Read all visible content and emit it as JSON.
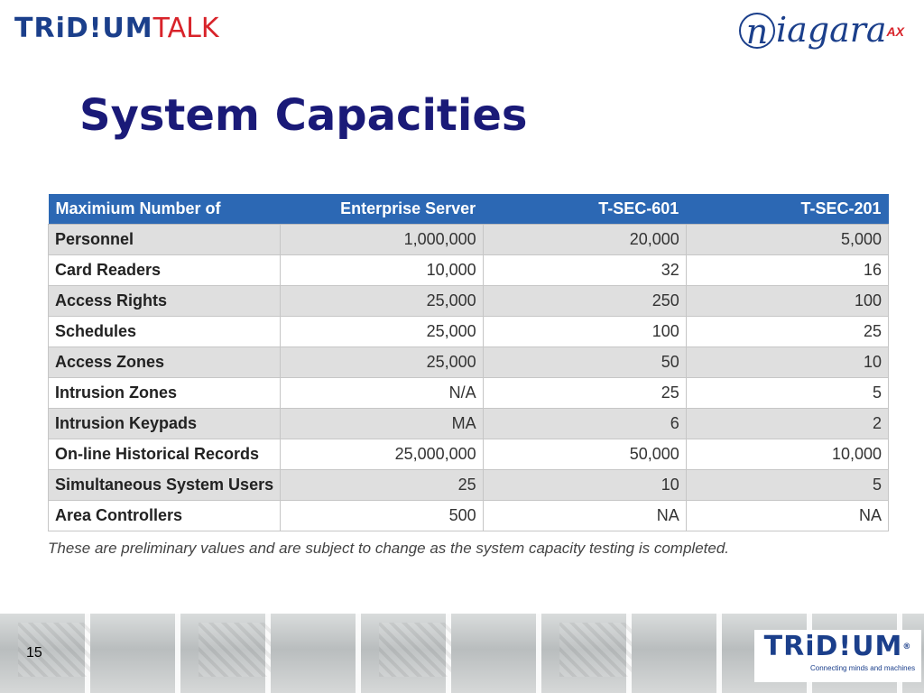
{
  "header": {
    "brand_tri": "TRiD!UM",
    "brand_talk": "TALK",
    "niagara_n": "n",
    "niagara_rest": "iagara",
    "niagara_ax": "AX"
  },
  "slide": {
    "title": "System Capacities",
    "note": "These are preliminary values and are subject to change as the system capacity testing is completed.",
    "page_number": "15"
  },
  "table": {
    "headers": [
      "Maximium Number of",
      "Enterprise Server",
      "T-SEC-601",
      "T-SEC-201"
    ],
    "rows": [
      [
        "Personnel",
        "1,000,000",
        "20,000",
        "5,000"
      ],
      [
        "Card Readers",
        "10,000",
        "32",
        "16"
      ],
      [
        "Access Rights",
        "25,000",
        "250",
        "100"
      ],
      [
        "Schedules",
        "25,000",
        "100",
        "25"
      ],
      [
        "Access Zones",
        "25,000",
        "50",
        "10"
      ],
      [
        "Intrusion Zones",
        "N/A",
        "25",
        "5"
      ],
      [
        "Intrusion Keypads",
        "MA",
        "6",
        "2"
      ],
      [
        "On-line Historical Records",
        "25,000,000",
        "50,000",
        "10,000"
      ],
      [
        "Simultaneous System Users",
        "25",
        "10",
        "5"
      ],
      [
        "Area Controllers",
        "500",
        "NA",
        "NA"
      ]
    ]
  },
  "footer": {
    "brand": "TRiD!UM",
    "registered": "®",
    "tagline": "Connecting minds and machines"
  },
  "colors": {
    "header_blue": "#2c68b4",
    "title_navy": "#1a1a78",
    "brand_blue": "#1b3f8b",
    "brand_red": "#d8232a",
    "row_shade": "#dfdfdf"
  }
}
